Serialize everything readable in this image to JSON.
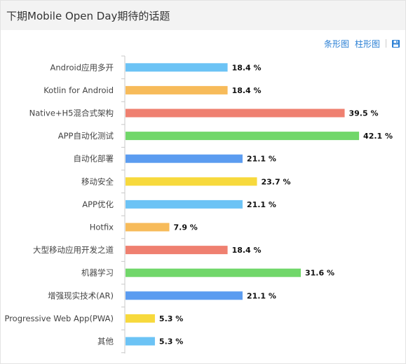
{
  "title": "下期Mobile Open Day期待的话题",
  "toolbar": {
    "bar_label": "条形图",
    "column_label": "柱形图",
    "save_icon": "save-icon"
  },
  "colors": [
    "#6cc3f5",
    "#f7bb5a",
    "#ef8070",
    "#71d76a",
    "#5b9cf0",
    "#f7d93c"
  ],
  "chart_data": {
    "type": "bar",
    "orientation": "horizontal",
    "xlim": [
      0,
      45
    ],
    "categories": [
      "Android应用多开",
      "Kotlin for Android",
      "Native+H5混合式架构",
      "APP自动化测试",
      "自动化部署",
      "移动安全",
      "APP优化",
      "Hotfix",
      "大型移动应用开发之道",
      "机器学习",
      "增强现实技术(AR)",
      "Progressive Web App(PWA)",
      "其他"
    ],
    "values": [
      18.4,
      18.4,
      39.5,
      42.1,
      21.1,
      23.7,
      21.1,
      7.9,
      18.4,
      31.6,
      21.1,
      5.3,
      5.3
    ],
    "value_labels": [
      "18.4 %",
      "18.4 %",
      "39.5 %",
      "42.1 %",
      "21.1 %",
      "23.7 %",
      "21.1 %",
      "7.9 %",
      "18.4 %",
      "31.6 %",
      "21.1 %",
      "5.3 %",
      "5.3 %"
    ]
  }
}
